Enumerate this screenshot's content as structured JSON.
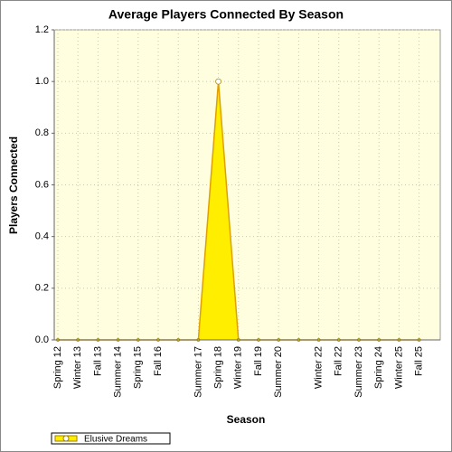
{
  "chart_data": {
    "type": "area",
    "title": "Average Players Connected By Season",
    "x_label": "Season",
    "y_label": "Players Connected",
    "categories": [
      "Spring 12",
      "Winter 13",
      "Fall 13",
      "Summer 14",
      "Spring 15",
      "Fall 16",
      null,
      "Summer 17",
      "Spring 18",
      "Winter 19",
      "Fall 19",
      "Summer 20",
      null,
      "Winter 22",
      "Fall 22",
      "Summer 23",
      "Spring 24",
      "Winter 25",
      "Fall 25"
    ],
    "series": [
      {
        "name": "Elusive Dreams",
        "color": "#ffee00",
        "values": [
          0,
          0,
          0,
          0,
          0,
          0,
          0,
          0,
          1,
          0,
          0,
          0,
          0,
          0,
          0,
          0,
          0,
          0,
          0
        ]
      }
    ],
    "ylim": [
      0,
      1.2
    ],
    "yticks": [
      {
        "value": 0,
        "label": "0.0"
      },
      0.2,
      0.4,
      0.6,
      0.8,
      {
        "value": 1,
        "label": "1.0"
      },
      1.2
    ],
    "grid": true,
    "legend": "bottom-left"
  }
}
